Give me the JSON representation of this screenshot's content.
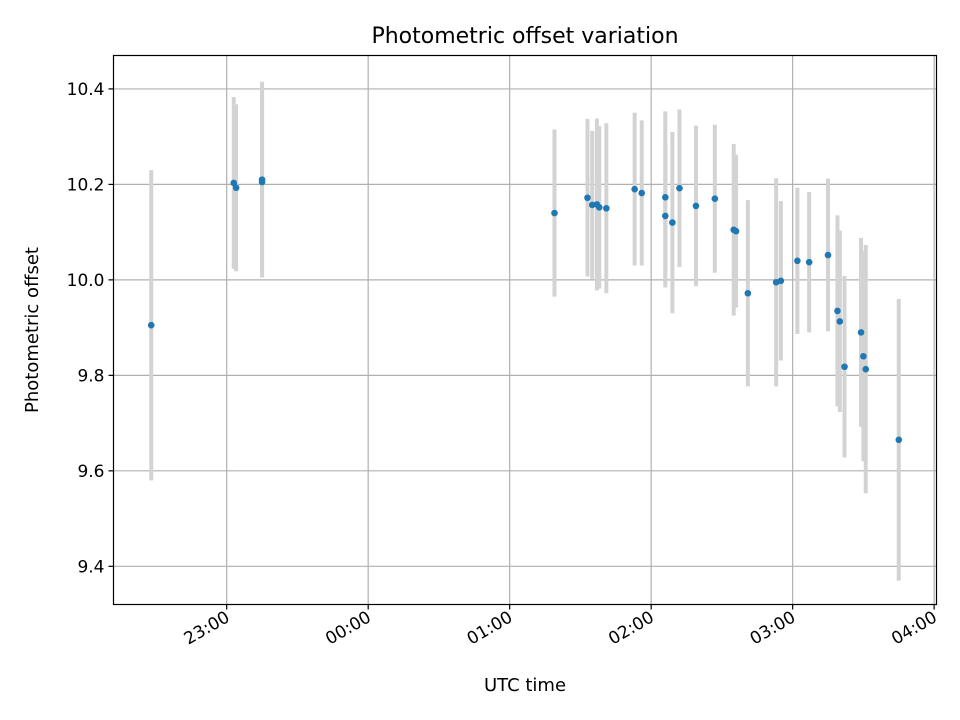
{
  "chart_data": {
    "type": "scatter",
    "title": "Photometric offset variation",
    "xlabel": "UTC time",
    "ylabel": "Photometric offset",
    "x_axis": "time",
    "xlim": [
      "2022-01-01T22:12",
      "2022-01-02T04:01"
    ],
    "ylim": [
      9.32,
      10.47
    ],
    "x_ticks": [
      {
        "t": "2022-01-01T23:00",
        "label": "23:00"
      },
      {
        "t": "2022-01-02T00:00",
        "label": "00:00"
      },
      {
        "t": "2022-01-02T01:00",
        "label": "01:00"
      },
      {
        "t": "2022-01-02T02:00",
        "label": "02:00"
      },
      {
        "t": "2022-01-02T03:00",
        "label": "03:00"
      },
      {
        "t": "2022-01-02T04:00",
        "label": "04:00"
      }
    ],
    "y_ticks": [
      9.4,
      9.6,
      9.8,
      10.0,
      10.2,
      10.4
    ],
    "grid": true,
    "colors": {
      "point": "#1f77b4",
      "errorbar": "#d3d3d3",
      "grid": "#b0b0b0"
    },
    "points": [
      {
        "t": "2022-01-01T22:28",
        "y": 9.905,
        "err": 0.325
      },
      {
        "t": "2022-01-01T23:03",
        "y": 10.203,
        "err": 0.18
      },
      {
        "t": "2022-01-01T23:04",
        "y": 10.193,
        "err": 0.175
      },
      {
        "t": "2022-01-01T23:15",
        "y": 10.205,
        "err": 0.2
      },
      {
        "t": "2022-01-01T23:15",
        "y": 10.21,
        "err": 0.205
      },
      {
        "t": "2022-01-02T01:19",
        "y": 10.14,
        "err": 0.175
      },
      {
        "t": "2022-01-02T01:33",
        "y": 10.172,
        "err": 0.165
      },
      {
        "t": "2022-01-02T01:35",
        "y": 10.157,
        "err": 0.155
      },
      {
        "t": "2022-01-02T01:37",
        "y": 10.158,
        "err": 0.18
      },
      {
        "t": "2022-01-02T01:38",
        "y": 10.152,
        "err": 0.17
      },
      {
        "t": "2022-01-02T01:41",
        "y": 10.15,
        "err": 0.178
      },
      {
        "t": "2022-01-02T01:53",
        "y": 10.19,
        "err": 0.16
      },
      {
        "t": "2022-01-02T01:56",
        "y": 10.182,
        "err": 0.152
      },
      {
        "t": "2022-01-02T02:06",
        "y": 10.173,
        "err": 0.18
      },
      {
        "t": "2022-01-02T02:06",
        "y": 10.134,
        "err": 0.15
      },
      {
        "t": "2022-01-02T02:09",
        "y": 10.12,
        "err": 0.19
      },
      {
        "t": "2022-01-02T02:12",
        "y": 10.192,
        "err": 0.165
      },
      {
        "t": "2022-01-02T02:19",
        "y": 10.155,
        "err": 0.168
      },
      {
        "t": "2022-01-02T02:27",
        "y": 10.17,
        "err": 0.155
      },
      {
        "t": "2022-01-02T02:35",
        "y": 10.105,
        "err": 0.18
      },
      {
        "t": "2022-01-02T02:36",
        "y": 10.102,
        "err": 0.16
      },
      {
        "t": "2022-01-02T02:41",
        "y": 9.972,
        "err": 0.195
      },
      {
        "t": "2022-01-02T02:53",
        "y": 9.995,
        "err": 0.218
      },
      {
        "t": "2022-01-02T02:55",
        "y": 9.998,
        "err": 0.167
      },
      {
        "t": "2022-01-02T03:02",
        "y": 10.04,
        "err": 0.153
      },
      {
        "t": "2022-01-02T03:07",
        "y": 10.037,
        "err": 0.147
      },
      {
        "t": "2022-01-02T03:15",
        "y": 10.052,
        "err": 0.16
      },
      {
        "t": "2022-01-02T03:19",
        "y": 9.935,
        "err": 0.2
      },
      {
        "t": "2022-01-02T03:20",
        "y": 9.913,
        "err": 0.19
      },
      {
        "t": "2022-01-02T03:22",
        "y": 9.818,
        "err": 0.19
      },
      {
        "t": "2022-01-02T03:29",
        "y": 9.89,
        "err": 0.198
      },
      {
        "t": "2022-01-02T03:30",
        "y": 9.84,
        "err": 0.22
      },
      {
        "t": "2022-01-02T03:31",
        "y": 9.813,
        "err": 0.26
      },
      {
        "t": "2022-01-02T03:45",
        "y": 9.665,
        "err": 0.295
      }
    ]
  }
}
